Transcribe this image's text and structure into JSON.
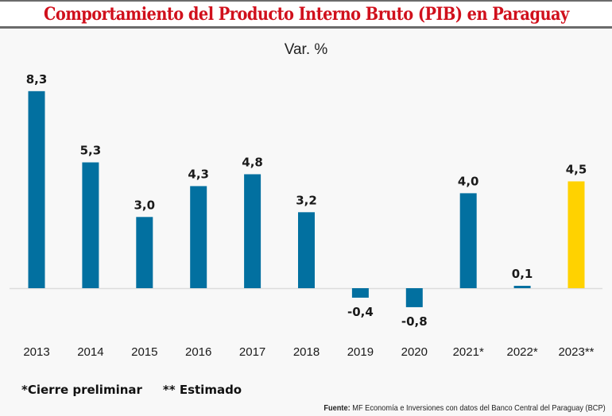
{
  "header": {
    "title": "Comportamiento del Producto Interno Bruto (PIB) en Paraguay"
  },
  "chart_data": {
    "type": "bar",
    "title": "Comportamiento del Producto Interno Bruto (PIB) en Paraguay",
    "subtitle": "Var. %",
    "xlabel": "",
    "ylabel": "Var. %",
    "categories": [
      "2013",
      "2014",
      "2015",
      "2016",
      "2017",
      "2018",
      "2019",
      "2020",
      "2021*",
      "2022*",
      "2023**"
    ],
    "values": [
      8.3,
      5.3,
      3.0,
      4.3,
      4.8,
      3.2,
      -0.4,
      -0.8,
      4.0,
      0.1,
      4.5
    ],
    "value_labels": [
      "8,3",
      "5,3",
      "3,0",
      "4,3",
      "4,8",
      "3,2",
      "-0,4",
      "-0,8",
      "4,0",
      "0,1",
      "4,5"
    ],
    "ylim": [
      -1.0,
      9.0
    ],
    "grid": false,
    "legend": null,
    "colors": {
      "default": "#0270a0",
      "highlight": "#ffd200",
      "highlight_categories": [
        "2023**"
      ],
      "baseline": "#dcdcdc"
    }
  },
  "footnotes": {
    "preliminary": "*Cierre preliminar",
    "estimated": "** Estimado"
  },
  "source": {
    "label": "Fuente:",
    "text": " MF Economía e Inversiones con datos del Banco Central del Paraguay (BCP)"
  }
}
